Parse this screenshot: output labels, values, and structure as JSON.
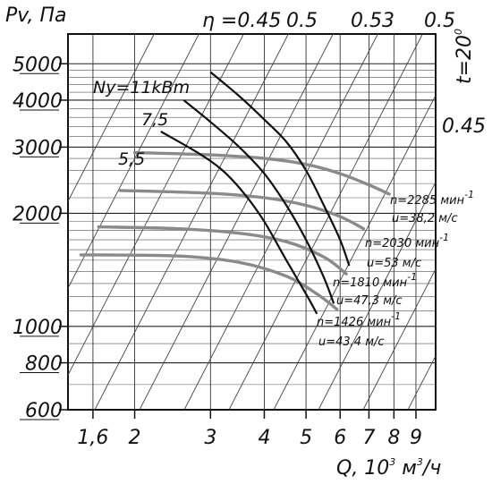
{
  "chart_data": {
    "type": "line",
    "y_axis_label": "Pv, Па",
    "x_axis_label": "Q, 10³ м³/ч",
    "x_axis_label_parts": {
      "q": "Q, 10",
      "exp": "3",
      "mid": " м",
      "exp2": "3",
      "end": "/ч"
    },
    "y_scale": "log",
    "x_scale": "log",
    "y_range": [
      600,
      6000
    ],
    "x_range": [
      1.4,
      10
    ],
    "y_ticks": [
      {
        "value": 600,
        "label": "600"
      },
      {
        "value": 800,
        "label": "800"
      },
      {
        "value": 1000,
        "label": "1000"
      },
      {
        "value": 2000,
        "label": "2000"
      },
      {
        "value": 3000,
        "label": "3000"
      },
      {
        "value": 4000,
        "label": "4000"
      },
      {
        "value": 5000,
        "label": "5000"
      }
    ],
    "x_ticks": [
      {
        "value": 1.6,
        "label": "1,6"
      },
      {
        "value": 2,
        "label": "2"
      },
      {
        "value": 3,
        "label": "3"
      },
      {
        "value": 4,
        "label": "4"
      },
      {
        "value": 5,
        "label": "5"
      },
      {
        "value": 6,
        "label": "6"
      },
      {
        "value": 7,
        "label": "7"
      },
      {
        "value": 8,
        "label": "8"
      },
      {
        "value": 9,
        "label": "9"
      }
    ],
    "grid": true,
    "efficiency_labels": [
      {
        "label": "η =0.45"
      },
      {
        "label": "0.5"
      },
      {
        "label": "0.53"
      },
      {
        "label": "0.5"
      },
      {
        "label": "0.45"
      }
    ],
    "temperature_label": "t=20",
    "temperature_sup": "0",
    "fan_curves": [
      {
        "speed_label": "n=2285 мин",
        "speed_sup": "-1",
        "velocity_label": "u=38,2 м/с",
        "points": [
          [
            2.0,
            2900
          ],
          [
            3.0,
            2860
          ],
          [
            4.0,
            2800
          ],
          [
            5.0,
            2700
          ],
          [
            6.0,
            2550
          ],
          [
            7.0,
            2380
          ],
          [
            7.8,
            2250
          ]
        ]
      },
      {
        "speed_label": "n=2030 мин",
        "speed_sup": "-1",
        "velocity_label": "u=53 м/с",
        "points": [
          [
            1.85,
            2300
          ],
          [
            3.0,
            2260
          ],
          [
            4.0,
            2200
          ],
          [
            5.0,
            2100
          ],
          [
            6.0,
            1960
          ],
          [
            6.8,
            1820
          ]
        ]
      },
      {
        "speed_label": "n=1810 мин",
        "speed_sup": "-1",
        "velocity_label": "u=47,3 м/с",
        "points": [
          [
            1.65,
            1840
          ],
          [
            2.5,
            1820
          ],
          [
            3.5,
            1770
          ],
          [
            4.5,
            1680
          ],
          [
            5.5,
            1530
          ],
          [
            6.2,
            1380
          ]
        ]
      },
      {
        "speed_label": "n=1426 мин",
        "speed_sup": "-1",
        "velocity_label": "u=43,4 м/с",
        "points": [
          [
            1.5,
            1550
          ],
          [
            2.5,
            1540
          ],
          [
            3.5,
            1480
          ],
          [
            4.5,
            1360
          ],
          [
            5.3,
            1220
          ],
          [
            5.9,
            1110
          ]
        ]
      }
    ],
    "power_curves": [
      {
        "label": "Ny=11kBm",
        "points": [
          [
            3.0,
            4750
          ],
          [
            3.5,
            4100
          ],
          [
            4.0,
            3550
          ],
          [
            4.5,
            3100
          ],
          [
            5.0,
            2600
          ],
          [
            5.5,
            2100
          ],
          [
            6.0,
            1700
          ],
          [
            6.3,
            1450
          ]
        ]
      },
      {
        "label": "7,5",
        "points": [
          [
            2.6,
            4000
          ],
          [
            3.0,
            3500
          ],
          [
            3.5,
            3000
          ],
          [
            4.0,
            2550
          ],
          [
            4.5,
            2100
          ],
          [
            5.0,
            1700
          ],
          [
            5.5,
            1350
          ],
          [
            5.8,
            1150
          ]
        ]
      },
      {
        "label": "5,5",
        "points": [
          [
            2.3,
            3300
          ],
          [
            2.8,
            2900
          ],
          [
            3.2,
            2600
          ],
          [
            3.6,
            2250
          ],
          [
            4.0,
            1900
          ],
          [
            4.5,
            1500
          ],
          [
            5.0,
            1220
          ],
          [
            5.3,
            1080
          ]
        ]
      }
    ]
  }
}
